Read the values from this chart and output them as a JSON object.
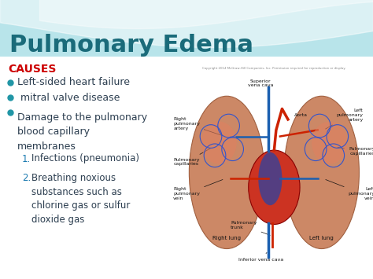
{
  "title": "Pulmonary Edema",
  "title_color": "#1a6b7a",
  "title_fontsize": 22,
  "bg_top_color": "#b8e4ea",
  "bg_slide_color": "#ffffff",
  "wave1_color": "#7ecfdc",
  "wave2_color": "#ffffff",
  "causes_label": "CAUSES",
  "causes_color": "#cc0000",
  "causes_fontsize": 10,
  "bullet_color": "#2c3e50",
  "bullet_dot_color": "#2196a6",
  "bullet_fontsize": 9,
  "bullets": [
    "Left-sided heart failure",
    " mitral valve disease",
    "Damage to the pulmonary\nblood capillary\nmembranes"
  ],
  "numbered_items": [
    "Infections (pneumonia)",
    "Breathing noxious\nsubstances such as\nchlorine gas or sulfur\ndioxide gas"
  ],
  "numbered_color": "#1a7ab0",
  "lung_fill": "#cc8866",
  "lung_edge": "#a06040",
  "heart_fill": "#cc3322",
  "vein_color": "#1a5fb0",
  "artery_color": "#cc2200",
  "label_color": "#111111",
  "label_fontsize": 4.5
}
